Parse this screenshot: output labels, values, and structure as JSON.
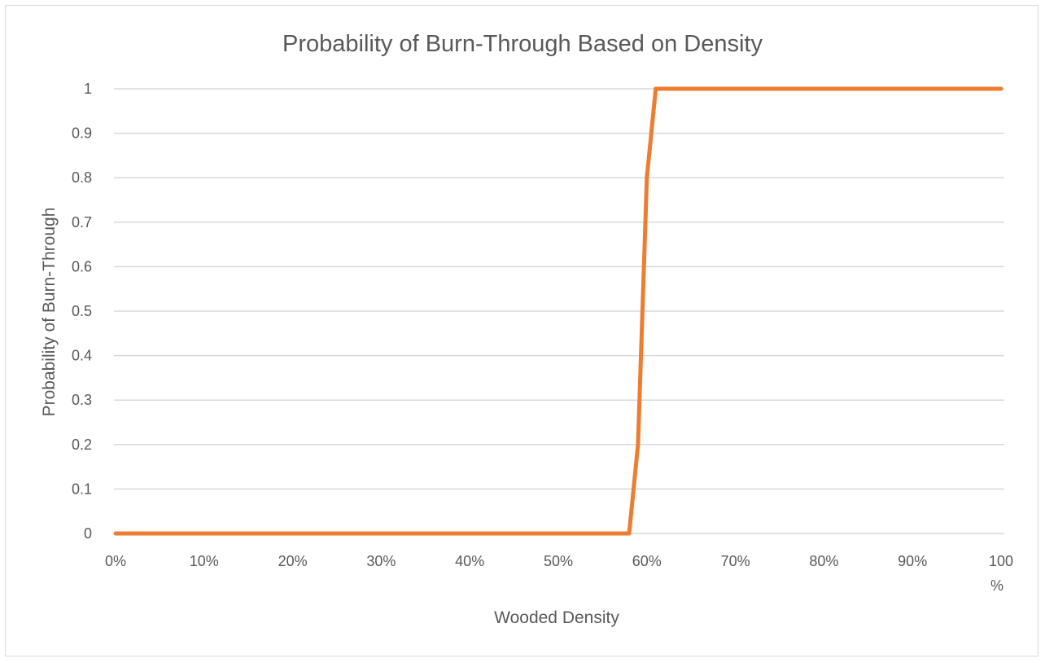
{
  "chart_data": {
    "type": "line",
    "title": "Probability of Burn-Through Based on Density",
    "xlabel": "Wooded Density",
    "ylabel": "Probability of Burn-Through",
    "x_ticks": [
      "0%",
      "10%",
      "20%",
      "30%",
      "40%",
      "50%",
      "60%",
      "70%",
      "80%",
      "90%",
      "100\n%"
    ],
    "y_ticks": [
      "0",
      "0.1",
      "0.2",
      "0.3",
      "0.4",
      "0.5",
      "0.6",
      "0.7",
      "0.8",
      "0.9",
      "1"
    ],
    "xlim": [
      0,
      1
    ],
    "ylim": [
      0,
      1
    ],
    "grid": true,
    "legend": "none",
    "series_color": "#ed7d31",
    "series": [
      {
        "x": [
          0,
          0.58,
          0.585,
          0.59,
          0.595,
          0.6,
          0.61,
          1.0
        ],
        "values": [
          0,
          0,
          0.1,
          0.2,
          0.5,
          0.8,
          1,
          1
        ]
      }
    ]
  }
}
